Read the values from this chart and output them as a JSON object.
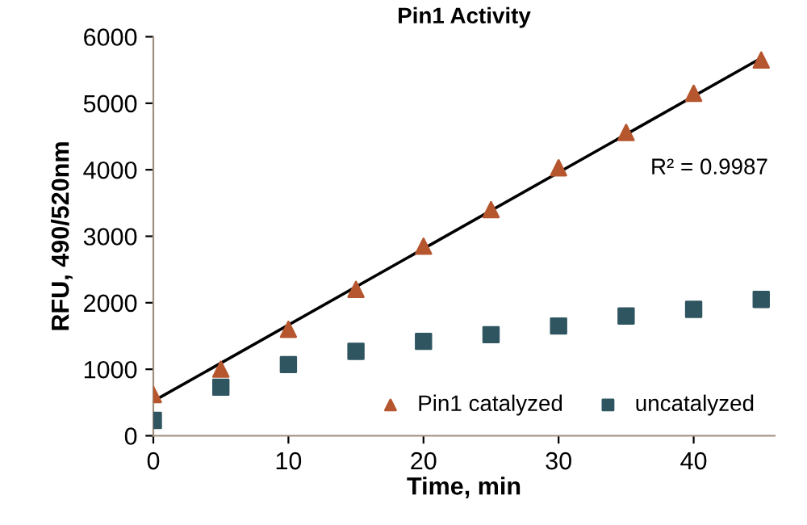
{
  "chart_data": {
    "type": "scatter",
    "title": "Pin1 Activity",
    "xlabel": "Time, min",
    "ylabel": "RFU, 490/520nm",
    "x": [
      0,
      5,
      10,
      15,
      20,
      25,
      30,
      35,
      40,
      45
    ],
    "series": [
      {
        "name": "Pin1 catalyzed",
        "color": "#b5562e",
        "marker": "triangle",
        "values": [
          620,
          1000,
          1600,
          2200,
          2850,
          3400,
          4030,
          4560,
          5150,
          5650
        ]
      },
      {
        "name": "uncatalyzed",
        "color": "#2f5560",
        "marker": "square",
        "values": [
          230,
          730,
          1070,
          1270,
          1420,
          1520,
          1650,
          1800,
          1900,
          2050
        ]
      },
      {
        "type": "line",
        "color": "#000000",
        "marker": "none",
        "x": [
          0,
          45
        ],
        "values": [
          520,
          5680
        ]
      }
    ],
    "annotations": [
      "R² = 0.9987"
    ],
    "xlim": [
      0,
      46
    ],
    "xticks": [
      0,
      10,
      20,
      30,
      40
    ],
    "ylim": [
      0,
      6000
    ],
    "yticks": [
      0,
      1000,
      2000,
      3000,
      4000,
      5000,
      6000
    ],
    "grid": false,
    "legend": "bottom right"
  }
}
